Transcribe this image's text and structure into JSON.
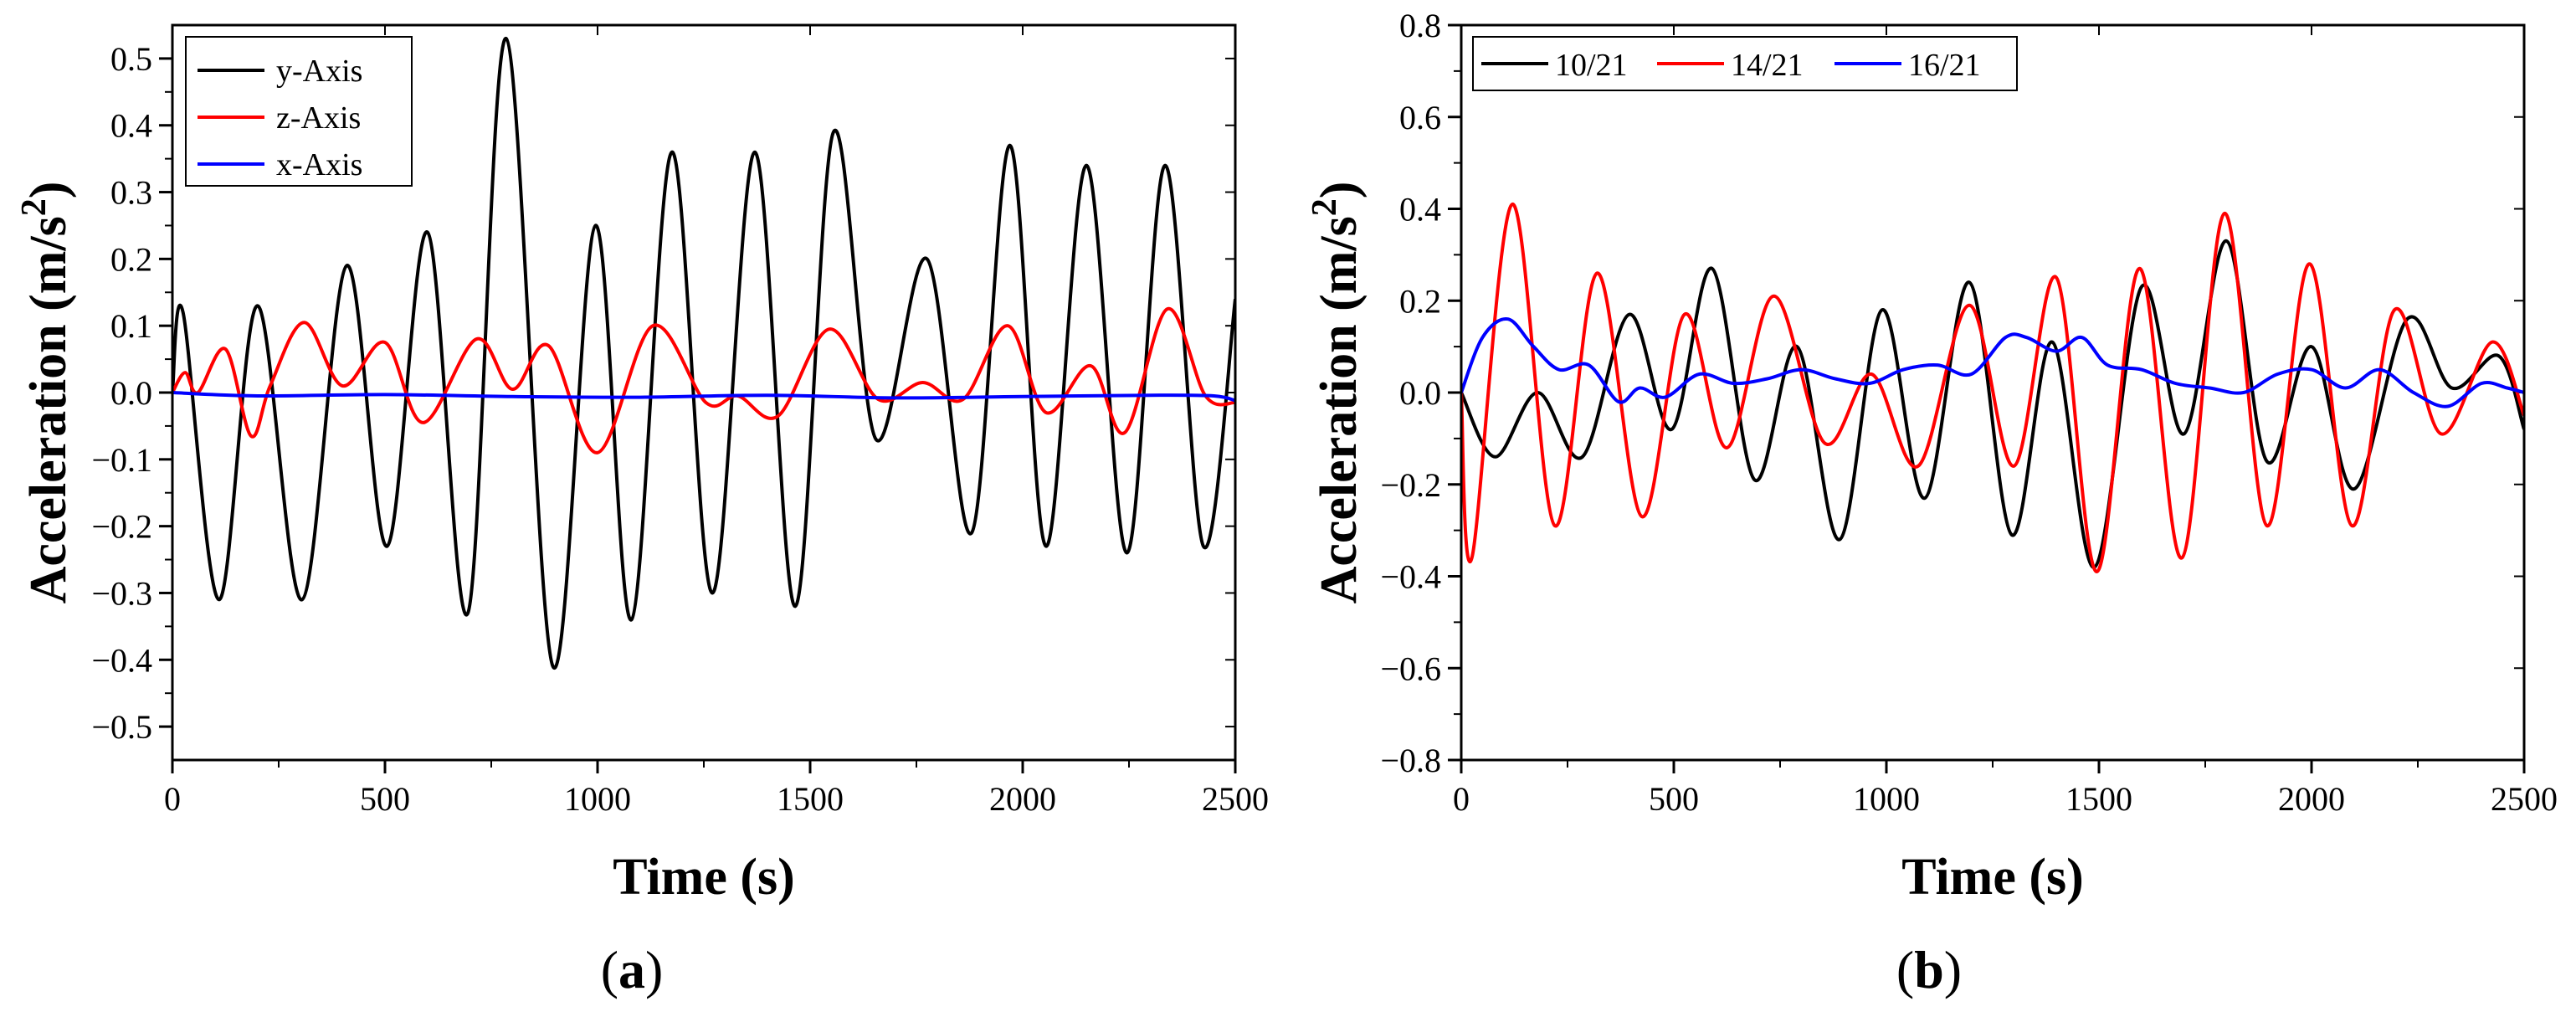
{
  "chart_data": [
    {
      "type": "line",
      "panel_label": {
        "open": "(",
        "letter": "a",
        "close": ")"
      },
      "xlabel": "Time (s)",
      "ylabel": "Acceleration (m/s",
      "ylabel_sup": "2",
      "ylabel_close": ")",
      "xlim": [
        0,
        2500
      ],
      "ylim": [
        -0.55,
        0.55
      ],
      "xticks": [
        0,
        500,
        1000,
        1500,
        2000,
        2500
      ],
      "xtick_labels": [
        "0",
        "500",
        "1000",
        "1500",
        "2000",
        "2500"
      ],
      "yticks": [
        -0.5,
        -0.4,
        -0.3,
        -0.2,
        -0.1,
        0.0,
        0.1,
        0.2,
        0.3,
        0.4,
        0.5
      ],
      "ytick_labels": [
        "−0.5",
        "−0.4",
        "−0.3",
        "−0.2",
        "−0.1",
        "0.0",
        "0.1",
        "0.2",
        "0.3",
        "0.4",
        "0.5"
      ],
      "legend_position": "top-left",
      "series": [
        {
          "name": "y-Axis",
          "color": "#000000",
          "x": [
            0,
            25,
            110,
            200,
            305,
            410,
            505,
            600,
            695,
            785,
            895,
            995,
            1080,
            1175,
            1270,
            1370,
            1465,
            1555,
            1655,
            1775,
            1880,
            1970,
            2055,
            2150,
            2245,
            2335,
            2425,
            2500
          ],
          "y": [
            0.0,
            0.12,
            -0.31,
            0.13,
            -0.31,
            0.19,
            -0.23,
            0.24,
            -0.33,
            0.53,
            -0.41,
            0.25,
            -0.34,
            0.36,
            -0.3,
            0.36,
            -0.32,
            0.39,
            -0.07,
            0.2,
            -0.21,
            0.37,
            -0.23,
            0.34,
            -0.24,
            0.34,
            -0.23,
            0.14
          ]
        },
        {
          "name": "z-Axis",
          "color": "#ff0000",
          "x": [
            0,
            30,
            60,
            125,
            185,
            230,
            310,
            400,
            500,
            590,
            715,
            800,
            885,
            1000,
            1130,
            1255,
            1330,
            1425,
            1545,
            1660,
            1765,
            1860,
            1965,
            2055,
            2160,
            2240,
            2340,
            2430,
            2500
          ],
          "y": [
            0.0,
            0.03,
            0.0,
            0.065,
            -0.065,
            0.01,
            0.105,
            0.01,
            0.075,
            -0.045,
            0.08,
            0.005,
            0.07,
            -0.09,
            0.1,
            -0.015,
            -0.005,
            -0.035,
            0.095,
            -0.01,
            0.015,
            -0.01,
            0.1,
            -0.03,
            0.04,
            -0.06,
            0.125,
            -0.005,
            -0.015
          ]
        },
        {
          "name": "x-Axis",
          "color": "#0000ff",
          "x": [
            0,
            200,
            500,
            800,
            1100,
            1400,
            1700,
            2000,
            2300,
            2450,
            2500
          ],
          "y": [
            0.0,
            -0.005,
            -0.003,
            -0.006,
            -0.007,
            -0.004,
            -0.008,
            -0.006,
            -0.004,
            -0.005,
            -0.012
          ]
        }
      ]
    },
    {
      "type": "line",
      "panel_label": {
        "open": "(",
        "letter": "b",
        "close": ")"
      },
      "xlabel": "Time (s)",
      "ylabel": "Acceleration (m/s",
      "ylabel_sup": "2",
      "ylabel_close": ")",
      "xlim": [
        0,
        2500
      ],
      "ylim": [
        -0.8,
        0.8
      ],
      "xticks": [
        0,
        500,
        1000,
        1500,
        2000,
        2500
      ],
      "xtick_labels": [
        "0",
        "500",
        "1000",
        "1500",
        "2000",
        "2500"
      ],
      "yticks": [
        -0.8,
        -0.6,
        -0.4,
        -0.2,
        0.0,
        0.2,
        0.4,
        0.6,
        0.8
      ],
      "ytick_labels": [
        "−0.8",
        "−0.6",
        "−0.4",
        "−0.2",
        "0.0",
        "0.2",
        "0.4",
        "0.6",
        "0.8"
      ],
      "legend_position": "top-left",
      "series": [
        {
          "name": "10/21",
          "color": "#000000",
          "x": [
            0,
            80,
            180,
            285,
            395,
            495,
            590,
            690,
            790,
            890,
            990,
            1090,
            1195,
            1295,
            1390,
            1490,
            1600,
            1700,
            1800,
            1895,
            2000,
            2100,
            2225,
            2330,
            2440,
            2500
          ],
          "y": [
            0.0,
            -0.14,
            0.0,
            -0.14,
            0.17,
            -0.08,
            0.27,
            -0.19,
            0.1,
            -0.32,
            0.18,
            -0.23,
            0.24,
            -0.31,
            0.11,
            -0.38,
            0.23,
            -0.09,
            0.33,
            -0.15,
            0.1,
            -0.21,
            0.16,
            0.01,
            0.08,
            -0.08
          ]
        },
        {
          "name": "14/21",
          "color": "#ff0000",
          "x": [
            0,
            25,
            120,
            220,
            320,
            425,
            525,
            625,
            735,
            855,
            965,
            1075,
            1195,
            1300,
            1400,
            1495,
            1595,
            1695,
            1795,
            1895,
            1995,
            2095,
            2195,
            2305,
            2425,
            2500
          ],
          "y": [
            0.0,
            -0.36,
            0.41,
            -0.29,
            0.26,
            -0.27,
            0.17,
            -0.12,
            0.21,
            -0.11,
            0.04,
            -0.16,
            0.19,
            -0.16,
            0.25,
            -0.39,
            0.27,
            -0.36,
            0.39,
            -0.29,
            0.28,
            -0.29,
            0.18,
            -0.09,
            0.11,
            -0.05
          ]
        },
        {
          "name": "16/21",
          "color": "#0000ff",
          "x": [
            0,
            50,
            110,
            170,
            230,
            300,
            370,
            420,
            480,
            560,
            640,
            720,
            800,
            880,
            960,
            1040,
            1120,
            1200,
            1280,
            1330,
            1400,
            1460,
            1520,
            1600,
            1680,
            1760,
            1840,
            1920,
            2000,
            2080,
            2160,
            2240,
            2320,
            2400,
            2460,
            2500
          ],
          "y": [
            0.0,
            0.12,
            0.16,
            0.1,
            0.05,
            0.06,
            -0.02,
            0.01,
            -0.01,
            0.04,
            0.02,
            0.03,
            0.05,
            0.03,
            0.02,
            0.05,
            0.06,
            0.04,
            0.12,
            0.12,
            0.09,
            0.12,
            0.06,
            0.05,
            0.02,
            0.01,
            0.0,
            0.04,
            0.05,
            0.01,
            0.05,
            0.0,
            -0.03,
            0.02,
            0.01,
            0.0
          ]
        }
      ]
    }
  ]
}
